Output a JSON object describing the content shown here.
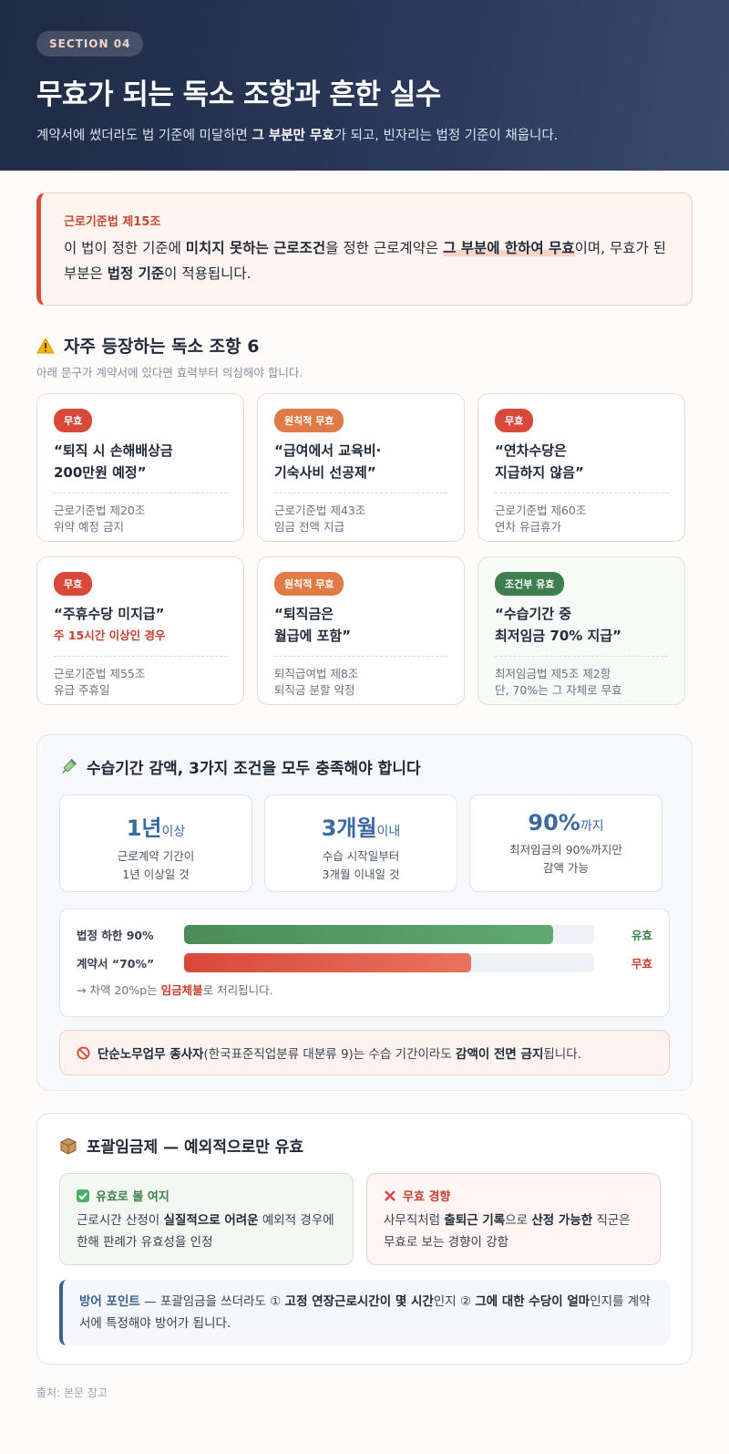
{
  "hero": {
    "section": "SECTION 04",
    "title": "무효가 되는 독소 조항과 흔한 실수",
    "sub_pre": "계약서에 썼더라도 법 기준에 미달하면 ",
    "sub_bold": "그 부분만 무효",
    "sub_post": "가 되고, 빈자리는 법정 기준이 채웁니다."
  },
  "law": {
    "title": "근로기준법 제15조",
    "t1": "이 법이 정한 기준에 ",
    "b1": "미치지 못하는 근로조건",
    "t2": "을 정한 근로계약은 ",
    "b2": "그 부분에 한하여 무효",
    "t3": "이며, 무효가 된 부분은 ",
    "b3": "법정 기준",
    "t4": "이 적용됩니다."
  },
  "toxic": {
    "title": "자주 등장하는 독소 조항 6",
    "subtitle": "아래 문구가 계약서에 있다면 효력부터 의심해야 합니다.",
    "cards": [
      {
        "tag": "무효",
        "q1": "“퇴직 시 손해배상금",
        "q2": "200만원 예정”",
        "r1": "근로기준법 제20조",
        "r2": "위약 예정 금지"
      },
      {
        "tag": "원칙적 무효",
        "q1": "“급여에서 교육비·",
        "q2": "기숙사비 선공제”",
        "r1": "근로기준법 제43조",
        "r2": "임금 전액 지급"
      },
      {
        "tag": "무효",
        "q1": "“연차수당은",
        "q2": "지급하지 않음”",
        "r1": "근로기준법 제60조",
        "r2": "연차 유급휴가"
      },
      {
        "tag": "무효",
        "q1": "“주휴수당 미지급”",
        "q2": "주 15시간 이상인 경우",
        "r1": "근로기준법 제55조",
        "r2": "유급 주휴일"
      },
      {
        "tag": "원칙적 무효",
        "q1": "“퇴직금은",
        "q2": "월급에 포함”",
        "r1": "퇴직급여법 제8조",
        "r2": "퇴직금 분할 약정"
      },
      {
        "tag": "조건부 유효",
        "q1": "“수습기간 중",
        "q2": "최저임금 70% 지급”",
        "r1": "최저임금법 제5조 제2항",
        "r2": "단, 70%는 그 자체로 무효"
      }
    ]
  },
  "training": {
    "title": "수습기간 감액, 3가지 조건을 모두 충족해야 합니다",
    "stats": [
      {
        "num": "1년",
        "unit": "이상",
        "d1": "근로계약 기간이",
        "d2": "1년 이상일 것"
      },
      {
        "num": "3개월",
        "unit": "이내",
        "d1": "수습 시작일부터",
        "d2": "3개월 이내일 것"
      },
      {
        "num": "90%",
        "unit": "까지",
        "d1": "최저임금의 90%까지만",
        "d2": "감액 가능"
      }
    ],
    "bars": [
      {
        "label": "법정 하한 90%",
        "pct": 90,
        "status": "유효"
      },
      {
        "label": "계약서 “70%”",
        "pct": 70,
        "status": "무효"
      }
    ],
    "note_pre": "→ 차액 20%p는 ",
    "note_bold": "임금체불",
    "note_post": "로 처리됩니다.",
    "ban_b1": "단순노무업무 종사자",
    "ban_t1": "(한국표준직업분류 대분류 9)는 수습 기간이라도 ",
    "ban_b2": "감액이 전면 금지",
    "ban_t2": "됩니다."
  },
  "lump": {
    "title": "포괄임금제 — 예외적으로만 유효",
    "ok_title": "유효로 볼 여지",
    "ok_t1": "근로시간 산정이 ",
    "ok_b": "실질적으로 어려운",
    "ok_t2": " 예외적 경우에 한해 판례가 유효성을 인정",
    "no_title": "무효 경향",
    "no_t1": "사무직처럼 ",
    "no_b1": "출퇴근 기록",
    "no_t2": "으로 ",
    "no_b2": "산정 가능한",
    "no_t3": " 직군은 무효로 보는 경향이 강함",
    "def_label": "방어 포인트",
    "def_t1": " — 포괄임금을 쓰더라도 ① ",
    "def_b1": "고정 연장근로시간이 몇 시간",
    "def_t2": "인지 ② ",
    "def_b2": "그에 대한 수당이 얼마",
    "def_t3": "인지를 계약서에 특정해야 방어가 됩니다."
  },
  "footer": "출처: 본문 참고",
  "colors": {
    "accent_red": "#d9493a",
    "accent_orange": "#e07a46",
    "accent_green": "#3f7f4f",
    "accent_blue": "#3b6aa0",
    "hero_bg": "#1f2a44"
  }
}
